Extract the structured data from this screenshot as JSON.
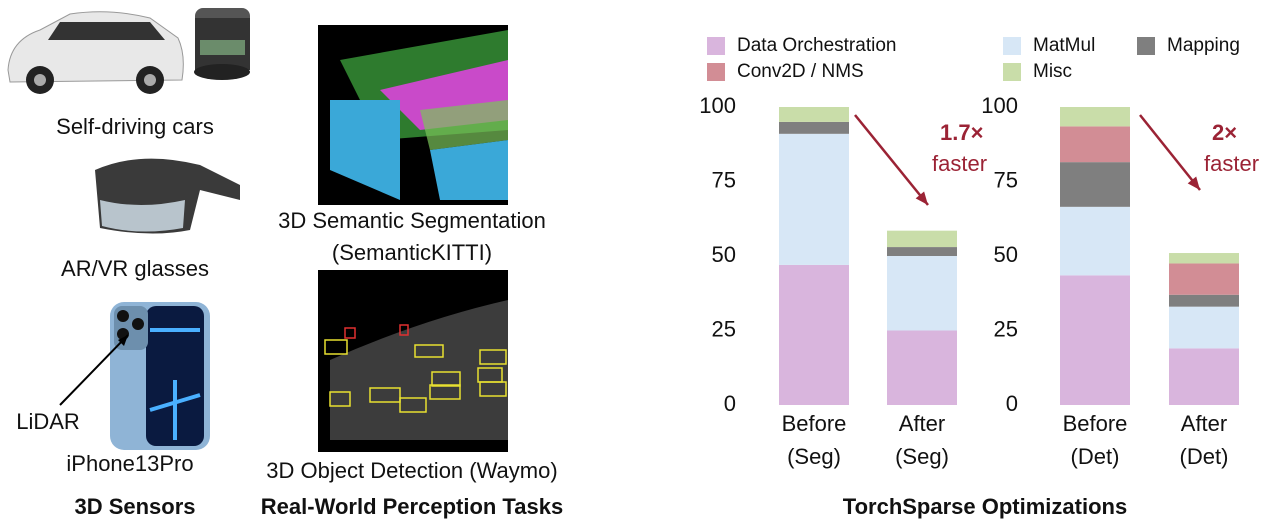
{
  "sensors": {
    "title": "3D Sensors",
    "items": [
      "Self-driving cars",
      "AR/VR glasses",
      "iPhone13Pro"
    ],
    "callout": "LiDAR"
  },
  "tasks": {
    "title": "Real-World Perception Tasks",
    "segmentation": [
      "3D Semantic Segmentation",
      "(SemanticKITTI)"
    ],
    "detection": "3D Object Detection (Waymo)"
  },
  "optimizations": {
    "title": "TorchSparse Optimizations"
  },
  "chart_data": [
    {
      "type": "stacked-bar",
      "categories": [
        "Before (Seg)",
        "After (Seg)"
      ],
      "series": [
        {
          "name": "Data Orchestration",
          "color": "#d9b5dd",
          "values": [
            47,
            25
          ]
        },
        {
          "name": "MatMul",
          "color": "#d7e7f6",
          "values": [
            44,
            25
          ]
        },
        {
          "name": "Mapping",
          "color": "#7f7f7f",
          "values": [
            4,
            3
          ]
        },
        {
          "name": "Conv2D / NMS",
          "color": "#d28d95",
          "values": [
            0,
            0
          ]
        },
        {
          "name": "Misc",
          "color": "#c9dda9",
          "values": [
            5,
            5.5
          ]
        }
      ],
      "ylim": [
        0,
        100
      ],
      "yticks": [
        0,
        25,
        50,
        75,
        100
      ],
      "grid": false,
      "annotation": {
        "speedup": "1.7×",
        "text": "faster"
      }
    },
    {
      "type": "stacked-bar",
      "categories": [
        "Before (Det)",
        "After (Det)"
      ],
      "series": [
        {
          "name": "Data Orchestration",
          "color": "#d9b5dd",
          "values": [
            43.5,
            19
          ]
        },
        {
          "name": "MatMul",
          "color": "#d7e7f6",
          "values": [
            23,
            14
          ]
        },
        {
          "name": "Mapping",
          "color": "#7f7f7f",
          "values": [
            15,
            4
          ]
        },
        {
          "name": "Conv2D / NMS",
          "color": "#d28d95",
          "values": [
            12,
            10.5
          ]
        },
        {
          "name": "Misc",
          "color": "#c9dda9",
          "values": [
            6.5,
            3.5
          ]
        }
      ],
      "ylim": [
        0,
        100
      ],
      "yticks": [
        0,
        25,
        50,
        75,
        100
      ],
      "grid": false,
      "annotation": {
        "speedup": "2×",
        "text": "faster"
      }
    }
  ]
}
